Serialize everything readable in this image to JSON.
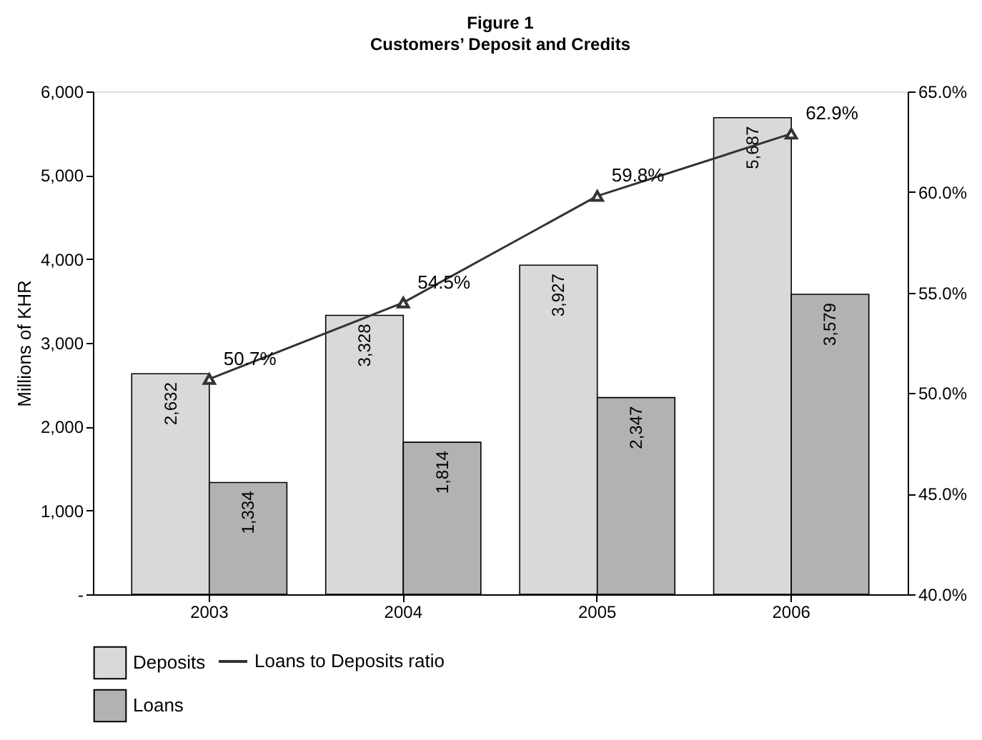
{
  "chart_data": {
    "type": "bar",
    "title": "Figure 1",
    "subtitle": "Customers’ Deposit and Credits",
    "ylabel": "Millions of KHR",
    "categories": [
      "2003",
      "2004",
      "2005",
      "2006"
    ],
    "series": [
      {
        "name": "Deposits",
        "color": "#d9d9d9",
        "values": [
          2632,
          3328,
          3927,
          5687
        ],
        "value_labels": [
          "2,632",
          "3,328",
          "3,927",
          "5,687"
        ]
      },
      {
        "name": "Loans",
        "color": "#b2b2b2",
        "values": [
          1334,
          1814,
          2347,
          3579
        ],
        "value_labels": [
          "1,334",
          "1,814",
          "2,347",
          "3,579"
        ]
      },
      {
        "name": "Loans to Deposits ratio",
        "type": "line",
        "axis": "y2",
        "color": "#333333",
        "marker": "triangle",
        "values": [
          50.7,
          54.5,
          59.8,
          62.9
        ],
        "value_labels": [
          "50.7%",
          "54.5%",
          "59.8%",
          "62.9%"
        ]
      }
    ],
    "ylim": [
      0,
      6000
    ],
    "yticks": [
      {
        "value": 0,
        "label": "-"
      },
      {
        "value": 1000,
        "label": "1,000"
      },
      {
        "value": 2000,
        "label": "2,000"
      },
      {
        "value": 3000,
        "label": "3,000"
      },
      {
        "value": 4000,
        "label": "4,000"
      },
      {
        "value": 5000,
        "label": "5,000"
      },
      {
        "value": 6000,
        "label": "6,000"
      }
    ],
    "y2lim": [
      40,
      65
    ],
    "y2ticks": [
      {
        "value": 40,
        "label": "40.0%"
      },
      {
        "value": 45,
        "label": "45.0%"
      },
      {
        "value": 50,
        "label": "50.0%"
      },
      {
        "value": 55,
        "label": "55.0%"
      },
      {
        "value": 60,
        "label": "60.0%"
      },
      {
        "value": 65,
        "label": "65.0%"
      }
    ],
    "grid": false,
    "legend": "bottom"
  }
}
